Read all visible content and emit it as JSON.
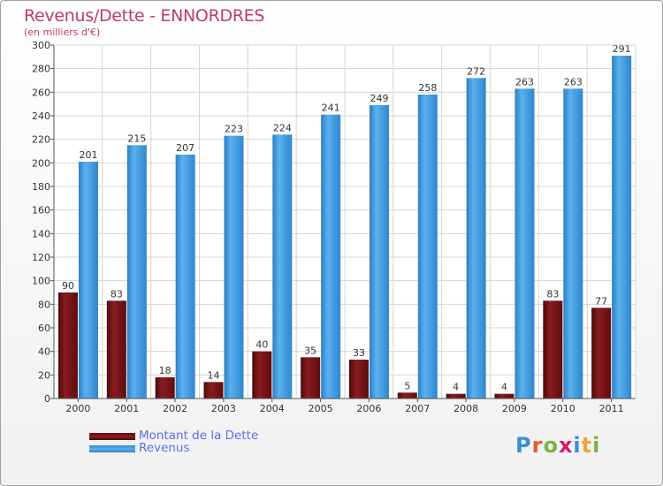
{
  "chart_data": {
    "type": "bar",
    "title": "Revenus/Dette - ENNORDRES",
    "subtitle": "(en milliers d'€)",
    "categories": [
      "2000",
      "2001",
      "2002",
      "2003",
      "2004",
      "2005",
      "2006",
      "2007",
      "2008",
      "2009",
      "2010",
      "2011"
    ],
    "series": [
      {
        "name": "Montant de la Dette",
        "values": [
          90,
          83,
          18,
          14,
          40,
          35,
          33,
          5,
          4,
          4,
          83,
          77
        ],
        "color": "#7a1418"
      },
      {
        "name": "Revenus",
        "values": [
          201,
          215,
          207,
          223,
          224,
          241,
          249,
          258,
          272,
          263,
          263,
          291
        ],
        "color": "#4aa0e2"
      }
    ],
    "ylim": [
      0,
      300
    ],
    "yticks": [
      0,
      20,
      40,
      60,
      80,
      100,
      120,
      140,
      160,
      180,
      200,
      220,
      240,
      260,
      280,
      300
    ],
    "grid": true,
    "legend_position": "bottom-left"
  },
  "logo": {
    "text": "Proxiti",
    "colors": [
      "#3b8fd8",
      "#e65a2b",
      "#7cb342",
      "#d81b60",
      "#3b8fd8",
      "#f2a33a",
      "#7cb342"
    ]
  }
}
